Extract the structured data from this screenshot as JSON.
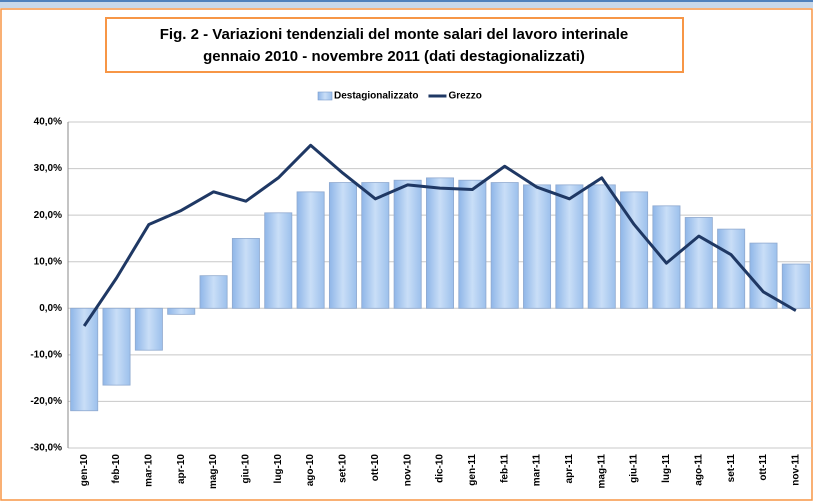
{
  "chart_data": {
    "type": "bar",
    "title": [
      "Fig. 2 - Variazioni tendenziali del monte salari del lavoro interinale",
      "gennaio 2010 - novembre 2011 (dati destagionalizzati)"
    ],
    "categories": [
      "gen-10",
      "feb-10",
      "mar-10",
      "apr-10",
      "mag-10",
      "giu-10",
      "lug-10",
      "ago-10",
      "set-10",
      "ott-10",
      "nov-10",
      "dic-10",
      "gen-11",
      "feb-11",
      "mar-11",
      "apr-11",
      "mag-11",
      "giu-11",
      "lug-11",
      "ago-11",
      "set-11",
      "ott-11",
      "nov-11"
    ],
    "series": [
      {
        "name": "Destagionalizzato",
        "type": "bar",
        "color": "#a9caf0",
        "values": [
          -22,
          -16.5,
          -9,
          -1.3,
          7,
          15,
          20.5,
          25,
          27,
          27,
          27.5,
          28,
          27.5,
          27,
          26.5,
          26.5,
          26.5,
          25,
          22,
          19.5,
          17,
          14,
          9.5
        ]
      },
      {
        "name": "Grezzo",
        "type": "line",
        "color": "#1f3864",
        "values": [
          -3.8,
          6.5,
          18,
          21,
          25,
          23,
          28,
          35,
          29,
          23.5,
          26.5,
          25.8,
          25.5,
          30.5,
          26,
          23.5,
          28,
          18,
          9.7,
          15.5,
          11.5,
          3.5,
          -0.5
        ]
      }
    ],
    "ylim": [
      -30,
      40
    ],
    "yticks": [
      {
        "value": -30,
        "label": "-30,0%"
      },
      {
        "value": -20,
        "label": "-20,0%"
      },
      {
        "value": -10,
        "label": "-10,0%"
      },
      {
        "value": 0,
        "label": "0,0%"
      },
      {
        "value": 10,
        "label": "10,0%"
      },
      {
        "value": 20,
        "label": "20,0%"
      },
      {
        "value": 30,
        "label": "30,0%"
      },
      {
        "value": 40,
        "label": "40,0%"
      }
    ],
    "grid": true,
    "legend": "top"
  }
}
